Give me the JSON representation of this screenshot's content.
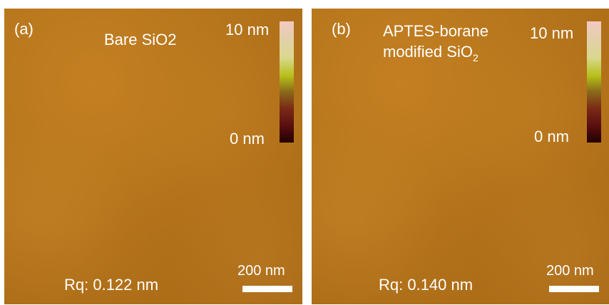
{
  "panels": [
    {
      "label": "(a)",
      "title_line1": "Bare SiO2",
      "colorbar_top": "10 nm",
      "colorbar_bottom": "0 nm",
      "roughness": "Rq: 0.122 nm",
      "scalebar": "200 nm"
    },
    {
      "label": "(b)",
      "title_line1": "APTES-borane",
      "title_line2_main": "modified  SiO",
      "title_line2_sub": "2",
      "colorbar_top": "10 nm",
      "colorbar_bottom": "0 nm",
      "roughness": "Rq: 0.140 nm",
      "scalebar": "200 nm"
    }
  ],
  "colors": {
    "surface": "#b8771c",
    "text": "#ffffff",
    "colorbar_top": "#f3c9c2",
    "colorbar_bottom": "#220000"
  }
}
